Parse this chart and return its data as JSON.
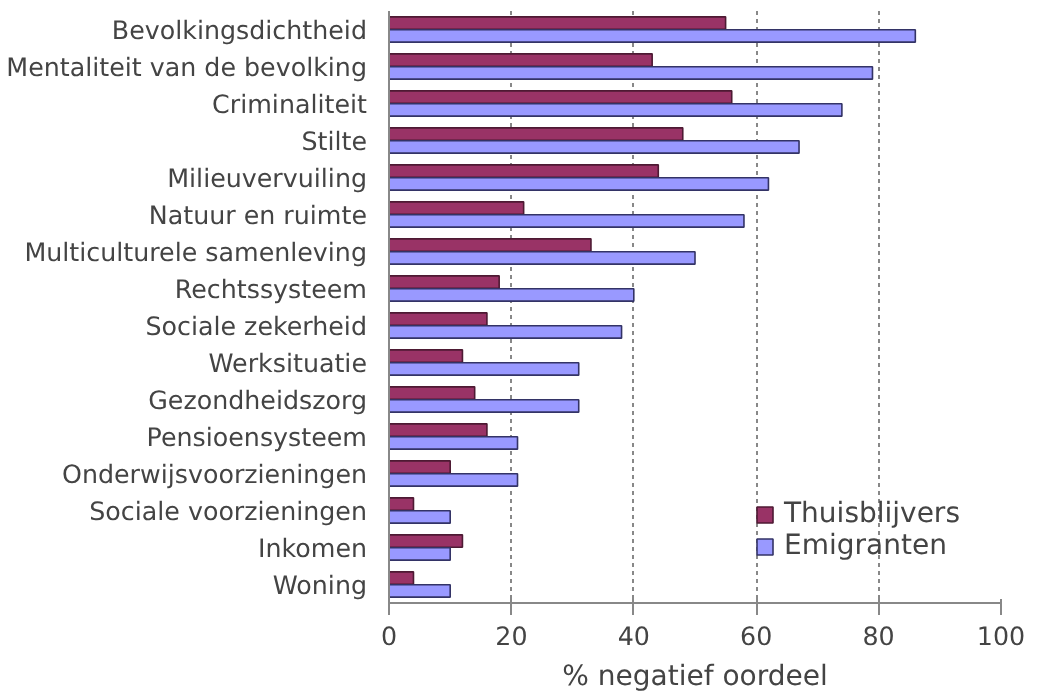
{
  "chart_data": {
    "type": "bar",
    "orientation": "horizontal",
    "xlabel": "% negatief oordeel",
    "categories": [
      "Bevolkingsdichtheid",
      "Mentaliteit van de bevolking",
      "Criminaliteit",
      "Stilte",
      "Milieuvervuiling",
      "Natuur en ruimte",
      "Multiculturele samenleving",
      "Rechtssysteem",
      "Sociale zekerheid",
      "Werksituatie",
      "Gezondheidszorg",
      "Pensioensysteem",
      "Onderwijsvoorzieningen",
      "Sociale voorzieningen",
      "Inkomen",
      "Woning"
    ],
    "series": [
      {
        "name": "Thuisblijvers",
        "color": "#993366",
        "values": [
          55,
          43,
          56,
          48,
          44,
          22,
          33,
          18,
          16,
          12,
          14,
          16,
          10,
          4,
          12,
          4
        ]
      },
      {
        "name": "Emigranten",
        "color": "#9999ff",
        "values": [
          86,
          79,
          74,
          67,
          62,
          58,
          50,
          40,
          38,
          31,
          31,
          21,
          21,
          10,
          10,
          10
        ]
      }
    ],
    "xlim": [
      0,
      100
    ],
    "xticks": [
      0,
      20,
      40,
      60,
      80,
      100
    ],
    "grid": "x",
    "legend": "bottom right"
  }
}
